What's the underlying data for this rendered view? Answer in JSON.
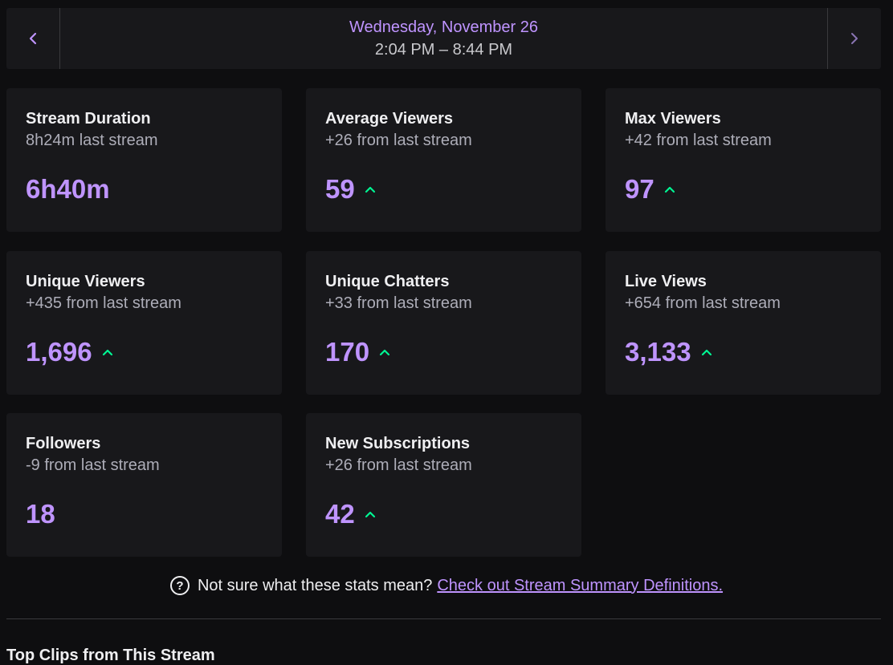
{
  "date_nav": {
    "prev_icon": "chevron-left-icon",
    "date": "Wednesday, November 26",
    "time_range": "2:04 PM – 8:44 PM",
    "next_icon": "chevron-right-icon"
  },
  "cards": [
    {
      "title": "Stream Duration",
      "sub": "8h24m last stream",
      "value": "6h40m",
      "trend": "none"
    },
    {
      "title": "Average Viewers",
      "sub": "+26 from last stream",
      "value": "59",
      "trend": "up"
    },
    {
      "title": "Max Viewers",
      "sub": "+42 from last stream",
      "value": "97",
      "trend": "up"
    },
    {
      "title": "Unique Viewers",
      "sub": "+435 from last stream",
      "value": "1,696",
      "trend": "up"
    },
    {
      "title": "Unique Chatters",
      "sub": "+33 from last stream",
      "value": "170",
      "trend": "up"
    },
    {
      "title": "Live Views",
      "sub": "+654 from last stream",
      "value": "3,133",
      "trend": "up"
    },
    {
      "title": "Followers",
      "sub": "-9 from last stream",
      "value": "18",
      "trend": "none"
    },
    {
      "title": "New Subscriptions",
      "sub": "+26 from last stream",
      "value": "42",
      "trend": "up"
    }
  ],
  "help": {
    "icon": "question-circle-icon",
    "text": "Not sure what these stats mean?",
    "link": "Check out Stream Summary Definitions."
  },
  "bottom_heading": "Top Clips from This Stream",
  "colors": {
    "accent": "#bf94ff",
    "trend_up": "#00f593",
    "card_bg": "#18181b",
    "page_bg": "#0e0e10"
  }
}
